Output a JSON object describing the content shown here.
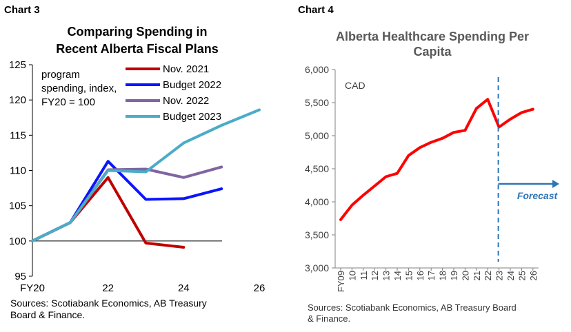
{
  "chart_data": [
    {
      "type": "line",
      "tag": "Chart 3",
      "title": [
        "Comparing Spending in",
        "Recent Alberta Fiscal Plans"
      ],
      "annotation": [
        "program",
        "spending, index,",
        "FY20 = 100"
      ],
      "x_tick_labels": [
        "FY20",
        "22",
        "24",
        "26"
      ],
      "x_ticks": [
        20,
        22,
        24,
        26
      ],
      "xlim": [
        20,
        26
      ],
      "ylim": [
        95,
        125
      ],
      "y_ticks": [
        95,
        100,
        105,
        110,
        115,
        120,
        125
      ],
      "reference_line": 100,
      "series": [
        {
          "name": "Nov. 2021",
          "color": "#c00000",
          "x": [
            20,
            21,
            22,
            23,
            24
          ],
          "y": [
            100.0,
            102.6,
            109.0,
            99.7,
            99.1
          ]
        },
        {
          "name": "Budget 2022",
          "color": "#0a14ff",
          "x": [
            20,
            21,
            22,
            23,
            24,
            25
          ],
          "y": [
            100.0,
            102.6,
            111.3,
            105.9,
            106.0,
            107.4
          ]
        },
        {
          "name": "Nov. 2022",
          "color": "#8064a2",
          "x": [
            20,
            21,
            22,
            23,
            24,
            25
          ],
          "y": [
            100.0,
            102.6,
            110.1,
            110.2,
            109.0,
            110.5
          ]
        },
        {
          "name": "Budget 2023",
          "color": "#4bacc6",
          "x": [
            20,
            21,
            22,
            23,
            24,
            25,
            26
          ],
          "y": [
            100.0,
            102.6,
            110.0,
            109.8,
            113.9,
            116.4,
            118.6
          ]
        }
      ],
      "source": [
        "Sources: Scotiabank Economics, AB Treasury",
        "Board & Finance."
      ]
    },
    {
      "type": "line",
      "tag": "Chart 4",
      "title": [
        "Alberta Healthcare Spending Per",
        "Capita"
      ],
      "unit_label": "CAD",
      "categories": [
        "FY09",
        "10",
        "11",
        "12",
        "13",
        "14",
        "15",
        "16",
        "17",
        "18",
        "19",
        "20",
        "21",
        "22",
        "23",
        "24",
        "25",
        "26"
      ],
      "ylim": [
        3000,
        6000
      ],
      "y_ticks": [
        3000,
        3500,
        4000,
        4500,
        5000,
        5500,
        6000
      ],
      "y_tick_labels": [
        "3,000",
        "3,500",
        "4,000",
        "4,500",
        "5,000",
        "5,500",
        "6,000"
      ],
      "series": [
        {
          "color": "#ff0000",
          "values": [
            3730,
            3950,
            4100,
            4240,
            4380,
            4430,
            4700,
            4820,
            4900,
            4960,
            5050,
            5080,
            5410,
            5550,
            5130,
            5250,
            5350,
            5400
          ]
        }
      ],
      "forecast_start": "23",
      "forecast_label": "Forecast",
      "forecast_color": "#2e75b6",
      "source": [
        "Sources: Scotiabank Economics, AB Treasury Board",
        "& Finance."
      ]
    }
  ]
}
